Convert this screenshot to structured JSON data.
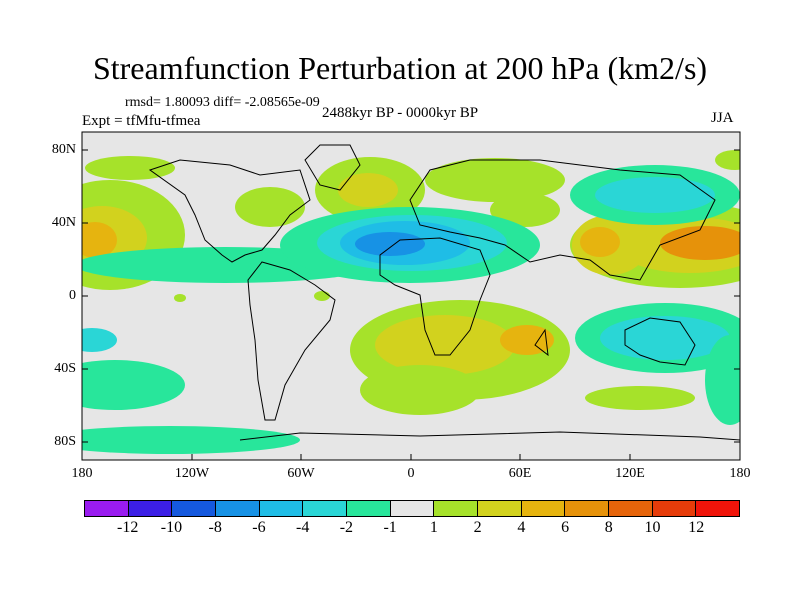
{
  "title": "Streamfunction Perturbation at 200 hPa (km2/s)",
  "stats": "rmsd= 1.80093 diff= -2.08565e-09",
  "experiment": "Expt = tfMfu-tfmea",
  "period": "2488kyr BP - 0000kyr BP",
  "season": "JJA",
  "lat_labels": [
    "80N",
    "40N",
    "0",
    "40S",
    "80S"
  ],
  "lon_labels": [
    "180",
    "120W",
    "60W",
    "0",
    "60E",
    "120E",
    "180"
  ],
  "colorbar": {
    "colors": [
      "#9a1cf0",
      "#3c1fe6",
      "#1559de",
      "#1792e5",
      "#1fbde6",
      "#2ad6d6",
      "#28e69b",
      "#e6e6e6",
      "#a6e22a",
      "#d2d21e",
      "#e6b40f",
      "#e6920a",
      "#e6640a",
      "#e63c0a",
      "#f0140a"
    ],
    "labels": [
      "-12",
      "-10",
      "-8",
      "-6",
      "-4",
      "-2",
      "-1",
      "1",
      "2",
      "4",
      "6",
      "8",
      "10",
      "12"
    ]
  }
}
